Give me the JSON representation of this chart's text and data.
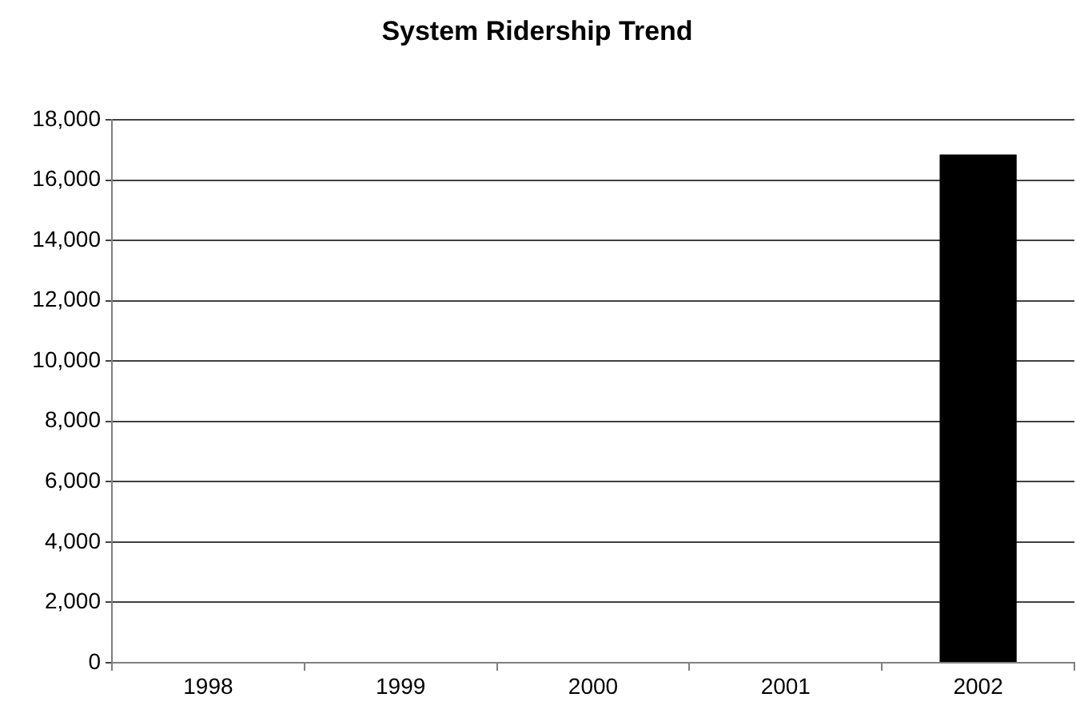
{
  "chart_data": {
    "type": "bar",
    "title": "System Ridership Trend",
    "categories": [
      "1998",
      "1999",
      "2000",
      "2001",
      "2002"
    ],
    "values": [
      null,
      null,
      null,
      null,
      16850
    ],
    "color": "#000000",
    "ylim": [
      0,
      18000
    ],
    "yticks": [
      0,
      {
        "value": 2000,
        "label": "2,000"
      },
      {
        "value": 4000,
        "label": "4,000"
      },
      {
        "value": 6000,
        "label": "6,000"
      },
      {
        "value": 8000,
        "label": "8,000"
      },
      {
        "value": 10000,
        "label": "10,000"
      },
      {
        "value": 12000,
        "label": "12,000"
      },
      {
        "value": 14000,
        "label": "14,000"
      },
      {
        "value": 16000,
        "label": "16,000"
      },
      {
        "value": 18000,
        "label": "18,000"
      }
    ],
    "grid": "y"
  }
}
